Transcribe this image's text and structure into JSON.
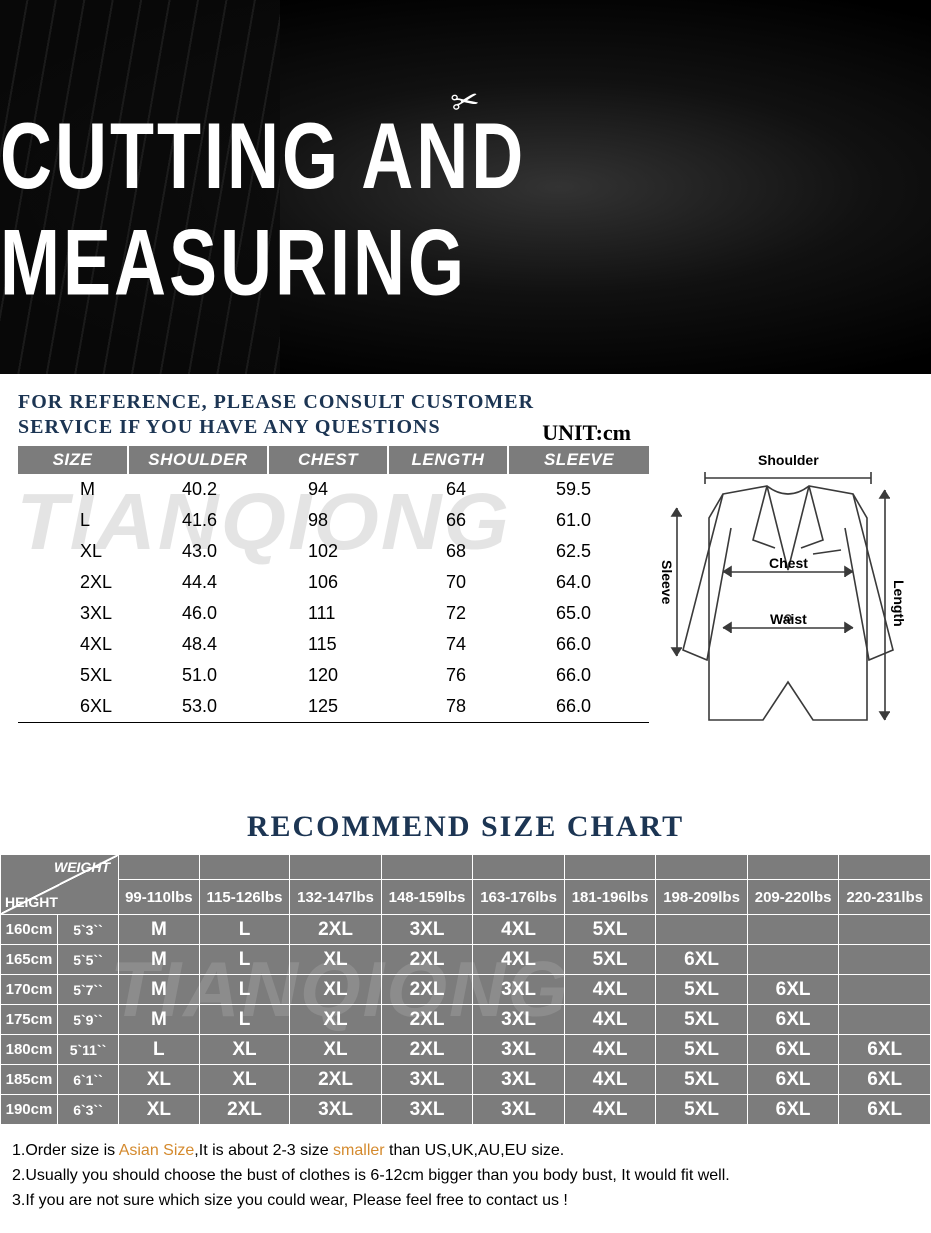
{
  "hero": {
    "title": "CUTTING AND MEASURING",
    "icon": "scissors"
  },
  "reference": {
    "line1": "FOR REFERENCE, PLEASE CONSULT CUSTOMER",
    "line2": "SERVICE IF YOU HAVE ANY QUESTIONS",
    "unit_label": "UNIT:cm"
  },
  "watermark": "TIANQIONG",
  "size_table": {
    "columns": [
      "SIZE",
      "SHOULDER",
      "CHEST",
      "LENGTH",
      "SLEEVE"
    ],
    "rows": [
      [
        "M",
        "40.2",
        "94",
        "64",
        "59.5"
      ],
      [
        "L",
        "41.6",
        "98",
        "66",
        "61.0"
      ],
      [
        "XL",
        "43.0",
        "102",
        "68",
        "62.5"
      ],
      [
        "2XL",
        "44.4",
        "106",
        "70",
        "64.0"
      ],
      [
        "3XL",
        "46.0",
        "111",
        "72",
        "65.0"
      ],
      [
        "4XL",
        "48.4",
        "115",
        "74",
        "66.0"
      ],
      [
        "5XL",
        "51.0",
        "120",
        "76",
        "66.0"
      ],
      [
        "6XL",
        "53.0",
        "125",
        "78",
        "66.0"
      ]
    ],
    "header_bg": "#7c7c7c",
    "header_fg": "#ffffff",
    "body_fg": "#000000"
  },
  "diagram": {
    "labels": {
      "shoulder": "Shoulder",
      "chest": "Chest",
      "waist": "Waist",
      "length": "Length",
      "sleeve": "Sleeve"
    },
    "stroke": "#3a3a3a"
  },
  "rec": {
    "title": "RECOMMEND SIZE CHART",
    "corner": {
      "weight": "WEIGHT",
      "height": "HEIGHT"
    },
    "weights": [
      "99-110lbs",
      "115-126lbs",
      "132-147lbs",
      "148-159lbs",
      "163-176lbs",
      "181-196lbs",
      "198-209lbs",
      "209-220lbs",
      "220-231lbs"
    ],
    "heights_cm": [
      "160cm",
      "165cm",
      "170cm",
      "175cm",
      "180cm",
      "185cm",
      "190cm"
    ],
    "heights_ft": [
      "5`3``",
      "5`5``",
      "5`7``",
      "5`9``",
      "5`11``",
      "6`1``",
      "6`3``"
    ],
    "grid": [
      [
        "M",
        "L",
        "2XL",
        "3XL",
        "4XL",
        "5XL",
        "",
        "",
        ""
      ],
      [
        "M",
        "L",
        "XL",
        "2XL",
        "4XL",
        "5XL",
        "6XL",
        "",
        ""
      ],
      [
        "M",
        "L",
        "XL",
        "2XL",
        "3XL",
        "4XL",
        "5XL",
        "6XL",
        ""
      ],
      [
        "M",
        "L",
        "XL",
        "2XL",
        "3XL",
        "4XL",
        "5XL",
        "6XL",
        ""
      ],
      [
        "L",
        "XL",
        "XL",
        "2XL",
        "3XL",
        "4XL",
        "5XL",
        "6XL",
        "6XL"
      ],
      [
        "XL",
        "XL",
        "2XL",
        "3XL",
        "3XL",
        "4XL",
        "5XL",
        "6XL",
        "6XL"
      ],
      [
        "XL",
        "2XL",
        "3XL",
        "3XL",
        "3XL",
        "4XL",
        "5XL",
        "6XL",
        "6XL"
      ]
    ],
    "bg": "#7c7c7c",
    "fg": "#ffffff",
    "border": "#ffffff"
  },
  "notes": {
    "n1a": "1.Order size is ",
    "n1b": "Asian Size",
    "n1c": ",It is about 2-3 size ",
    "n1d": "smaller",
    "n1e": " than US,UK,AU,EU size.",
    "n2": "2.Usually you should choose the bust of clothes is 6-12cm bigger than you body bust, It would fit well.",
    "n3": "3.If you are not sure which size you could wear, Please feel free to contact us !",
    "highlight_color": "#d48a2e"
  }
}
